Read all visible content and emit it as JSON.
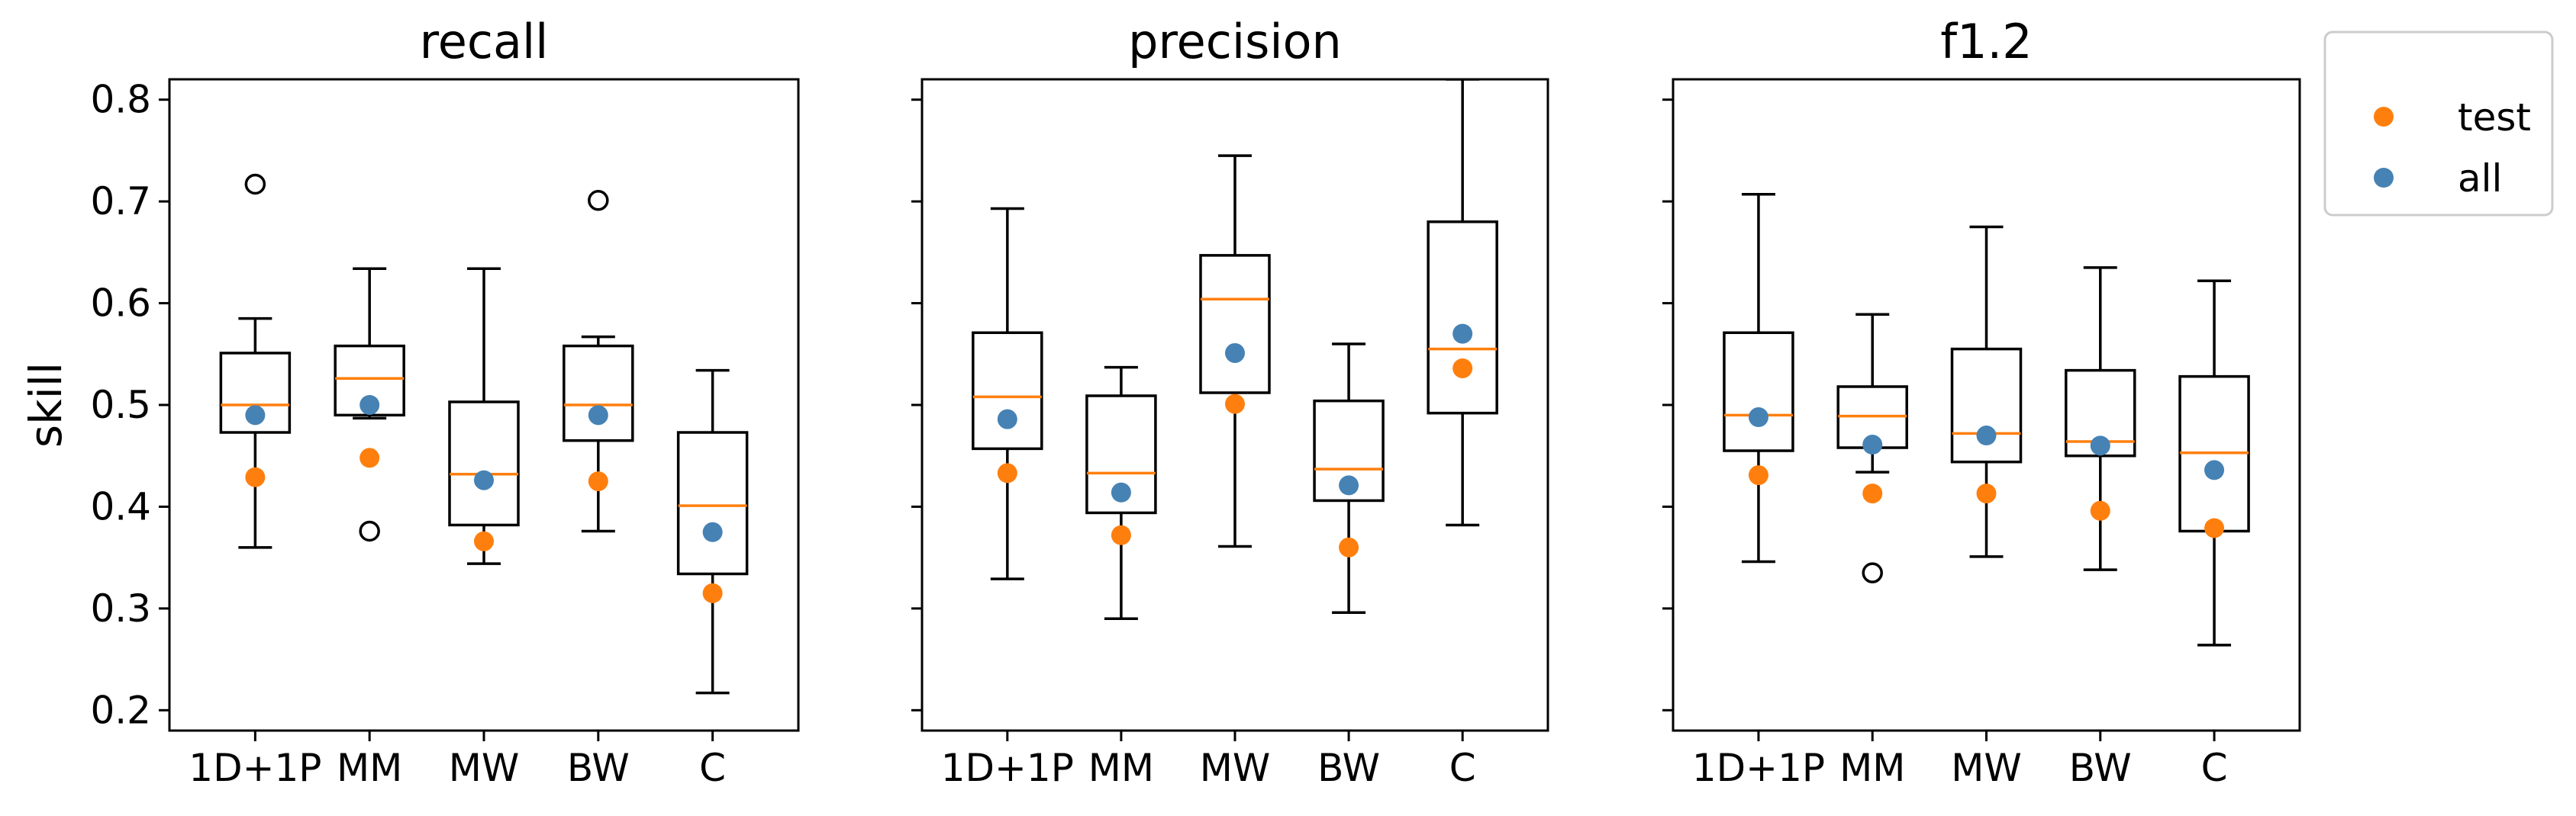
{
  "chart_data": {
    "type": "box",
    "ylabel": "skill",
    "ylim": [
      0.18,
      0.82
    ],
    "yticks": [
      0.2,
      0.3,
      0.4,
      0.5,
      0.6,
      0.7,
      0.8
    ],
    "ytick_labels": [
      "0.2",
      "0.3",
      "0.4",
      "0.5",
      "0.6",
      "0.7",
      "0.8"
    ],
    "categories": [
      "1D+1P",
      "MM",
      "MW",
      "BW",
      "C"
    ],
    "colors": {
      "median": "#ff7f0e",
      "test": "#ff7f0e",
      "all": "#4682b4",
      "box": "#000000"
    },
    "legend": {
      "position": "upper right outside",
      "entries": [
        {
          "label": "test",
          "color": "#ff7f0e"
        },
        {
          "label": "all",
          "color": "#4682b4"
        }
      ]
    },
    "panels": [
      {
        "title": "recall",
        "boxes": [
          {
            "category": "1D+1P",
            "whislo": 0.36,
            "q1": 0.473,
            "med": 0.5,
            "q3": 0.551,
            "whishi": 0.585,
            "fliers": [
              0.717
            ],
            "test": 0.429,
            "all": 0.49
          },
          {
            "category": "MM",
            "whislo": 0.487,
            "q1": 0.49,
            "med": 0.526,
            "q3": 0.558,
            "whishi": 0.634,
            "fliers": [
              0.376
            ],
            "test": 0.448,
            "all": 0.5
          },
          {
            "category": "MW",
            "whislo": 0.344,
            "q1": 0.382,
            "med": 0.432,
            "q3": 0.503,
            "whishi": 0.634,
            "fliers": [],
            "test": 0.366,
            "all": 0.426
          },
          {
            "category": "BW",
            "whislo": 0.376,
            "q1": 0.465,
            "med": 0.5,
            "q3": 0.558,
            "whishi": 0.567,
            "fliers": [
              0.701
            ],
            "test": 0.425,
            "all": 0.49
          },
          {
            "category": "C",
            "whislo": 0.217,
            "q1": 0.334,
            "med": 0.401,
            "q3": 0.473,
            "whishi": 0.534,
            "fliers": [],
            "test": 0.315,
            "all": 0.375
          }
        ]
      },
      {
        "title": "precision",
        "boxes": [
          {
            "category": "1D+1P",
            "whislo": 0.329,
            "q1": 0.457,
            "med": 0.508,
            "q3": 0.571,
            "whishi": 0.693,
            "fliers": [],
            "test": 0.433,
            "all": 0.486
          },
          {
            "category": "MM",
            "whislo": 0.29,
            "q1": 0.394,
            "med": 0.433,
            "q3": 0.509,
            "whishi": 0.537,
            "fliers": [],
            "test": 0.372,
            "all": 0.414
          },
          {
            "category": "MW",
            "whislo": 0.361,
            "q1": 0.512,
            "med": 0.604,
            "q3": 0.647,
            "whishi": 0.745,
            "fliers": [],
            "test": 0.501,
            "all": 0.551
          },
          {
            "category": "BW",
            "whislo": 0.296,
            "q1": 0.406,
            "med": 0.437,
            "q3": 0.504,
            "whishi": 0.56,
            "fliers": [],
            "test": 0.36,
            "all": 0.421
          },
          {
            "category": "C",
            "whislo": 0.382,
            "q1": 0.492,
            "med": 0.555,
            "q3": 0.68,
            "whishi": 0.82,
            "fliers": [],
            "test": 0.536,
            "all": 0.57
          }
        ]
      },
      {
        "title": "f1.2",
        "boxes": [
          {
            "category": "1D+1P",
            "whislo": 0.346,
            "q1": 0.455,
            "med": 0.49,
            "q3": 0.571,
            "whishi": 0.707,
            "fliers": [],
            "test": 0.431,
            "all": 0.488
          },
          {
            "category": "MM",
            "whislo": 0.434,
            "q1": 0.458,
            "med": 0.489,
            "q3": 0.518,
            "whishi": 0.589,
            "fliers": [
              0.335
            ],
            "test": 0.413,
            "all": 0.461
          },
          {
            "category": "MW",
            "whislo": 0.351,
            "q1": 0.444,
            "med": 0.472,
            "q3": 0.555,
            "whishi": 0.675,
            "fliers": [],
            "test": 0.413,
            "all": 0.47
          },
          {
            "category": "BW",
            "whislo": 0.338,
            "q1": 0.45,
            "med": 0.464,
            "q3": 0.534,
            "whishi": 0.635,
            "fliers": [],
            "test": 0.396,
            "all": 0.46
          },
          {
            "category": "C",
            "whislo": 0.264,
            "q1": 0.376,
            "med": 0.453,
            "q3": 0.528,
            "whishi": 0.622,
            "fliers": [],
            "test": 0.379,
            "all": 0.436
          }
        ]
      }
    ]
  }
}
